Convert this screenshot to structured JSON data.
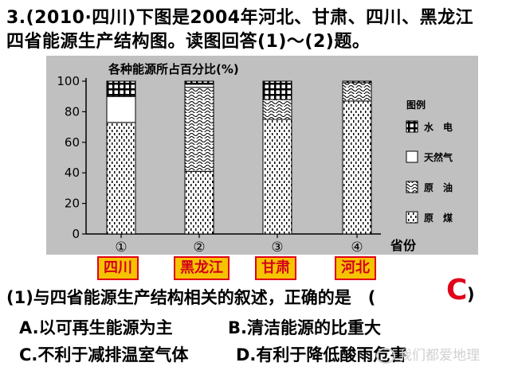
{
  "question": {
    "line1": "3.(2010·四川)下图是2004年河北、甘肃、四川、黑龙江",
    "line2": "四省能源生产结构图。读图回答(1)～(2)题。"
  },
  "chart_data": {
    "type": "bar",
    "stacked": true,
    "title": "各种能源所占百分比(%)",
    "xlabel": "省份",
    "ylabel": "各种能源所占百分比(%)",
    "ylim": [
      0,
      100
    ],
    "yticks": [
      0,
      20,
      40,
      60,
      80,
      100
    ],
    "categories": [
      "①",
      "②",
      "③",
      "④"
    ],
    "legend_title": "图例",
    "legend_position": "right",
    "series": [
      {
        "name": "原煤",
        "values": [
          73,
          41,
          75,
          87
        ]
      },
      {
        "name": "原油",
        "values": [
          0,
          55,
          13,
          12
        ]
      },
      {
        "name": "天然气",
        "values": [
          17,
          2,
          0,
          0
        ]
      },
      {
        "name": "水电",
        "values": [
          10,
          2,
          12,
          1
        ]
      }
    ],
    "colors": {
      "background": "#c0c0c0",
      "bar_fill": "#ffffff",
      "axis": "#000000"
    }
  },
  "provinces": [
    "四川",
    "黑龙江",
    "甘肃",
    "河北"
  ],
  "sub_question": "(1)与四省能源生产结构相关的叙述，正确的是　(",
  "answer": "C",
  "close_paren": ")",
  "options": {
    "A": "A.以可再生能源为主",
    "B": "B.清洁能源的比重大",
    "C": "C.不利于减排温室气体",
    "D": "D.有利于降低酸雨危害"
  },
  "watermark": "我们都爱地理",
  "province_colors": {
    "fill": "#f5c400",
    "border": "#e0001a",
    "text": "#d4001a"
  }
}
